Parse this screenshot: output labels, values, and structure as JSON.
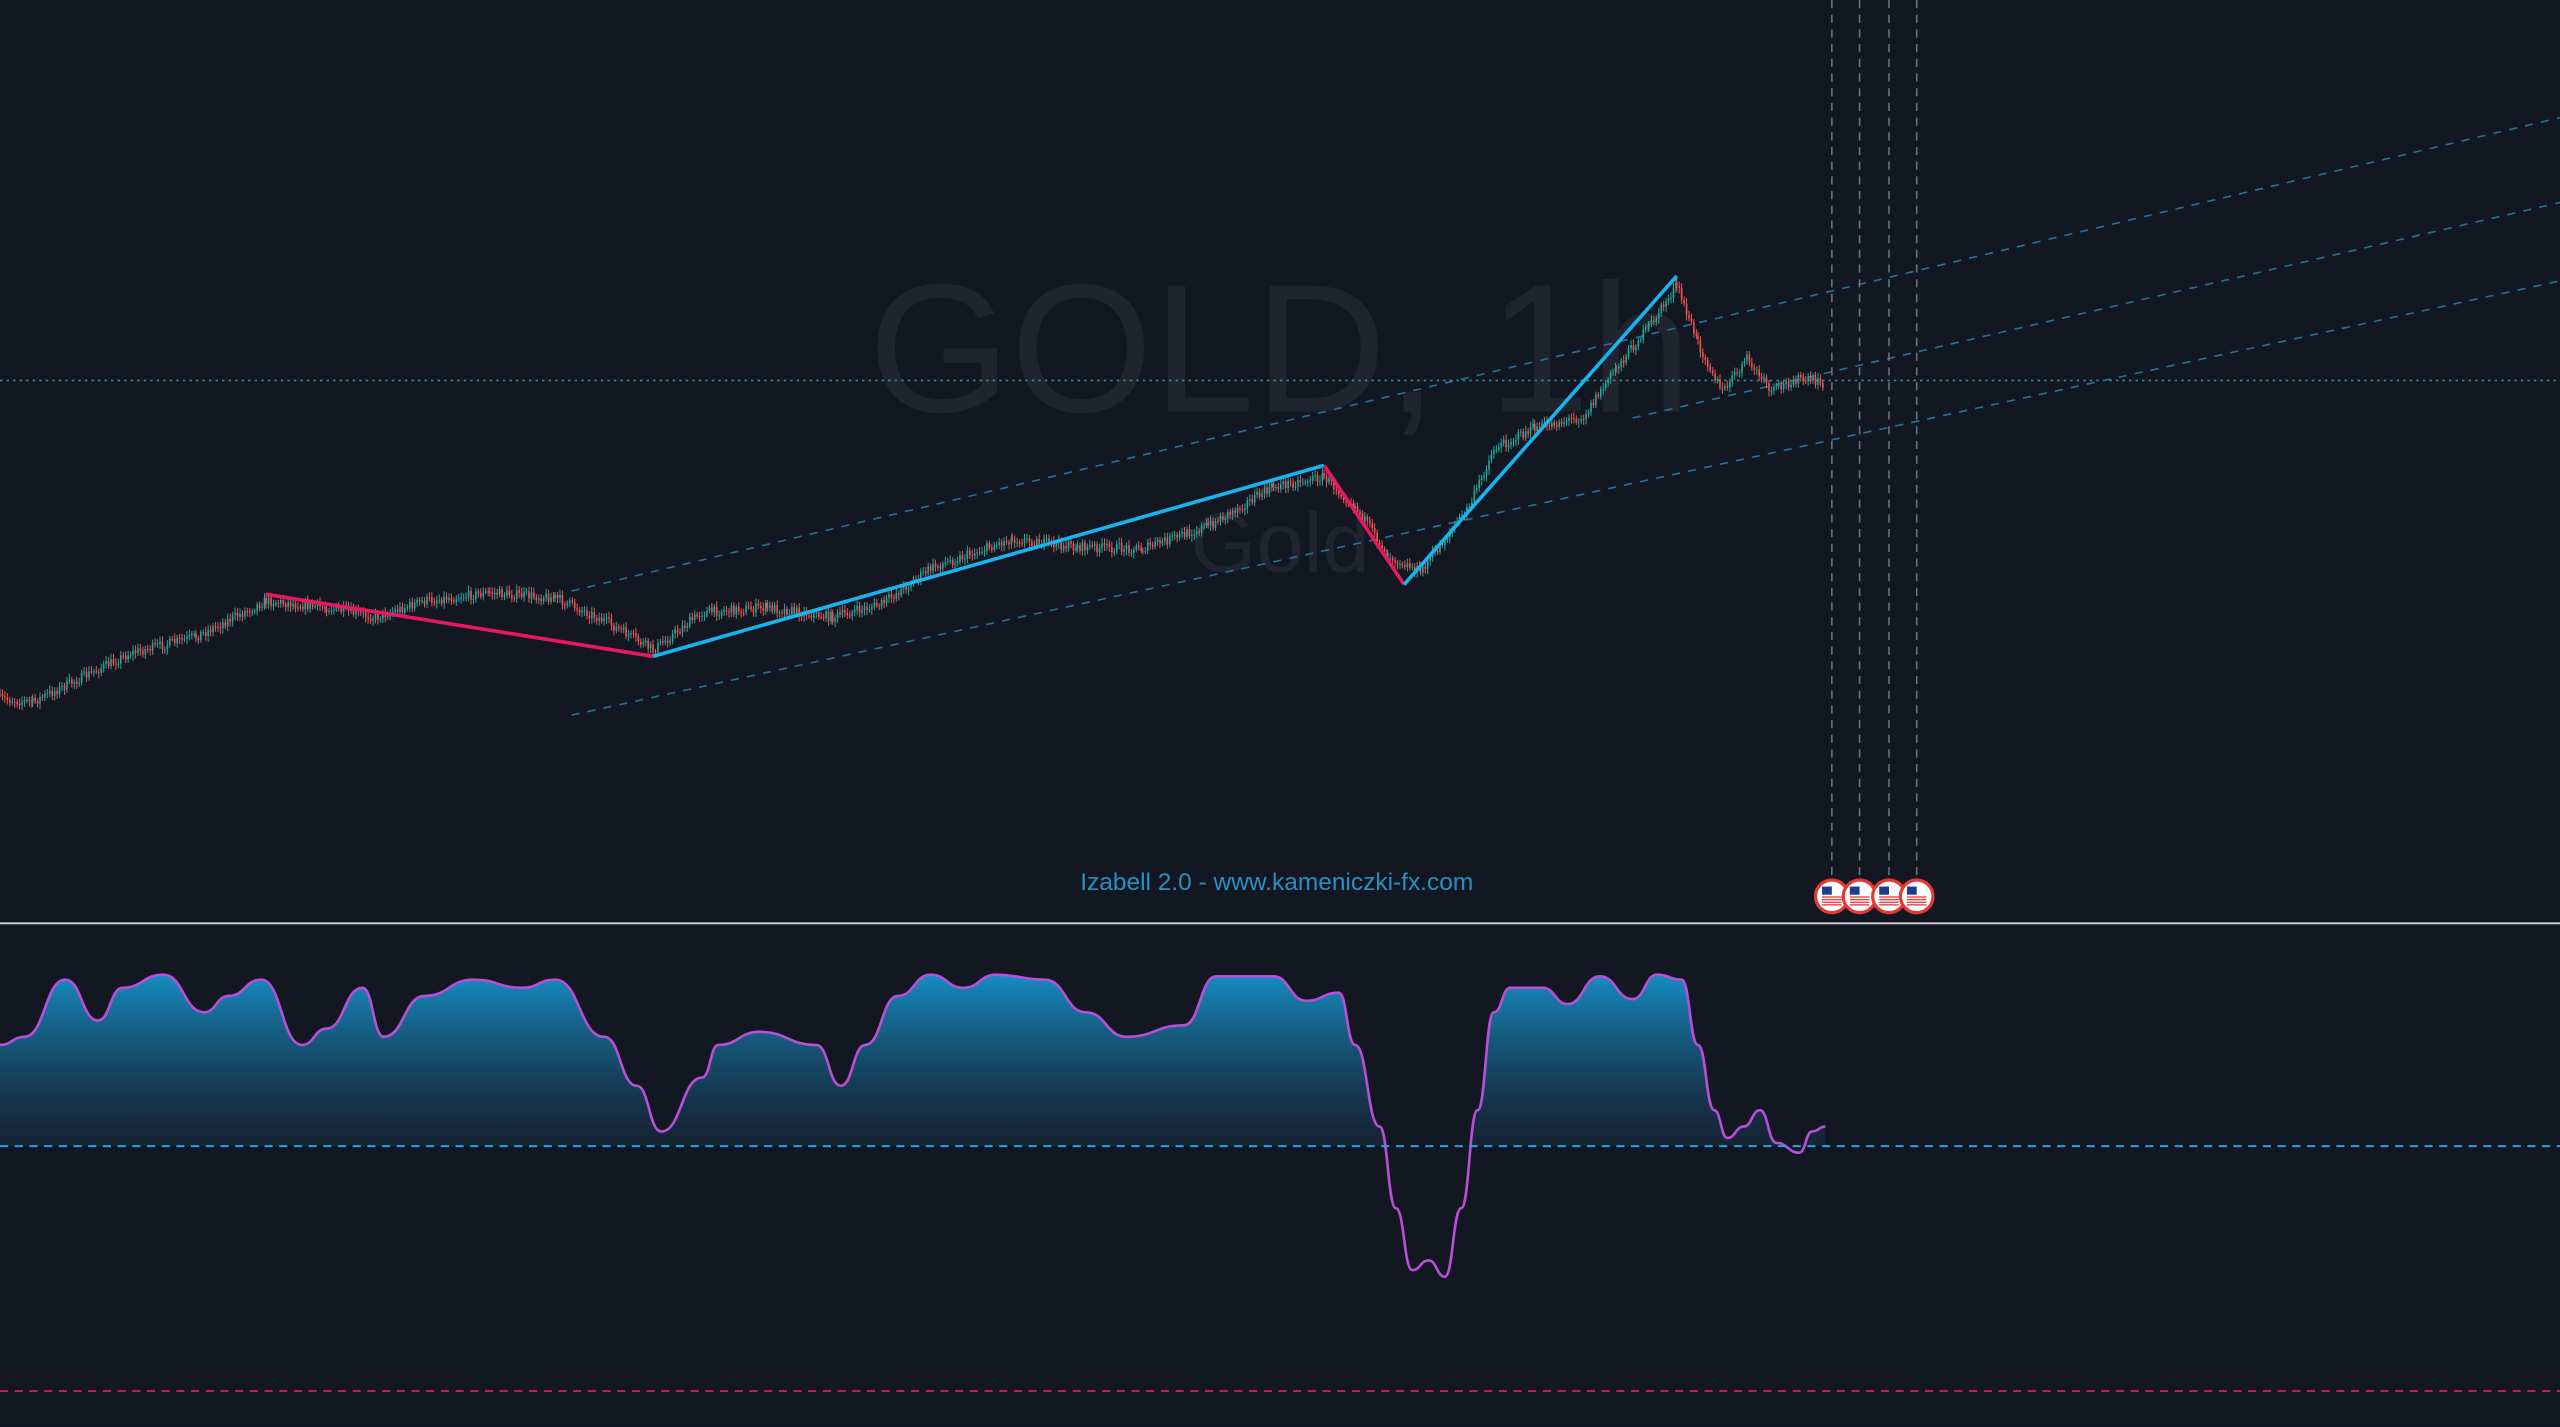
{
  "watermark": {
    "symbol": "GOLD, 1h",
    "description": "Gold"
  },
  "indicator_label": "Izabell 2.0 - www.kameniczki-fx.com"
}
